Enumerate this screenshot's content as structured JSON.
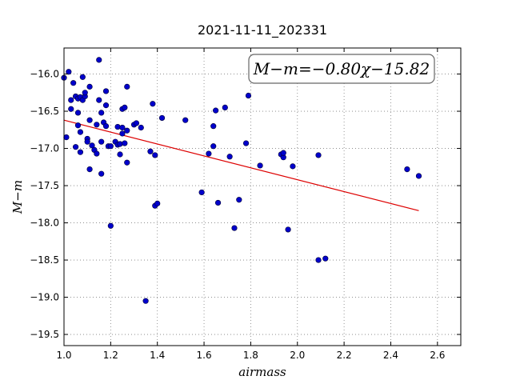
{
  "chart_data": {
    "type": "scatter",
    "title": "2021-11-11_202331",
    "xlabel": "airmass",
    "ylabel": "M−m",
    "xlim": [
      1.0,
      2.7
    ],
    "ylim": [
      -19.65,
      -15.65
    ],
    "y_inverted": true,
    "grid": true,
    "x_ticks": [
      1.0,
      1.2,
      1.4,
      1.6,
      1.8,
      2.0,
      2.2,
      2.4,
      2.6
    ],
    "x_tick_labels": [
      "1.0",
      "1.2",
      "1.4",
      "1.6",
      "1.8",
      "2.0",
      "2.2",
      "2.4",
      "2.6"
    ],
    "y_ticks": [
      -16.0,
      -16.5,
      -17.0,
      -17.5,
      -18.0,
      -18.5,
      -19.0,
      -19.5
    ],
    "y_tick_labels": [
      "−16.0",
      "−16.5",
      "−17.0",
      "−17.5",
      "−18.0",
      "−18.5",
      "−19.0",
      "−19.5"
    ],
    "annotation": "M−m=−0.80χ−15.82",
    "point_color": "#0000cc",
    "fit_color": "#dd0000",
    "fit": {
      "slope": -0.8,
      "intercept": -15.82,
      "x_range": [
        1.0,
        2.52
      ]
    },
    "points": [
      [
        1.0,
        -16.05
      ],
      [
        1.01,
        -16.85
      ],
      [
        1.02,
        -15.97
      ],
      [
        1.03,
        -16.35
      ],
      [
        1.03,
        -16.47
      ],
      [
        1.04,
        -16.12
      ],
      [
        1.05,
        -16.3
      ],
      [
        1.05,
        -16.98
      ],
      [
        1.06,
        -16.33
      ],
      [
        1.06,
        -16.69
      ],
      [
        1.06,
        -16.52
      ],
      [
        1.07,
        -16.31
      ],
      [
        1.07,
        -16.78
      ],
      [
        1.07,
        -17.05
      ],
      [
        1.08,
        -16.04
      ],
      [
        1.08,
        -16.35
      ],
      [
        1.09,
        -16.3
      ],
      [
        1.09,
        -16.25
      ],
      [
        1.1,
        -16.87
      ],
      [
        1.1,
        -16.91
      ],
      [
        1.11,
        -17.28
      ],
      [
        1.11,
        -16.62
      ],
      [
        1.11,
        -16.17
      ],
      [
        1.12,
        -16.96
      ],
      [
        1.13,
        -17.02
      ],
      [
        1.14,
        -17.07
      ],
      [
        1.14,
        -16.68
      ],
      [
        1.15,
        -16.35
      ],
      [
        1.15,
        -15.81
      ],
      [
        1.16,
        -16.52
      ],
      [
        1.16,
        -17.34
      ],
      [
        1.16,
        -16.91
      ],
      [
        1.17,
        -16.65
      ],
      [
        1.18,
        -16.42
      ],
      [
        1.18,
        -16.7
      ],
      [
        1.18,
        -16.23
      ],
      [
        1.19,
        -16.97
      ],
      [
        1.2,
        -16.97
      ],
      [
        1.2,
        -18.04
      ],
      [
        1.22,
        -16.91
      ],
      [
        1.23,
        -16.71
      ],
      [
        1.23,
        -16.95
      ],
      [
        1.24,
        -17.08
      ],
      [
        1.24,
        -16.94
      ],
      [
        1.25,
        -16.72
      ],
      [
        1.25,
        -16.8
      ],
      [
        1.25,
        -16.47
      ],
      [
        1.26,
        -16.45
      ],
      [
        1.26,
        -16.93
      ],
      [
        1.27,
        -16.76
      ],
      [
        1.27,
        -17.19
      ],
      [
        1.27,
        -16.17
      ],
      [
        1.3,
        -16.68
      ],
      [
        1.31,
        -16.66
      ],
      [
        1.33,
        -16.72
      ],
      [
        1.35,
        -19.05
      ],
      [
        1.37,
        -17.04
      ],
      [
        1.38,
        -16.4
      ],
      [
        1.39,
        -17.09
      ],
      [
        1.39,
        -17.77
      ],
      [
        1.4,
        -17.74
      ],
      [
        1.42,
        -16.59
      ],
      [
        1.52,
        -16.62
      ],
      [
        1.59,
        -17.59
      ],
      [
        1.62,
        -17.07
      ],
      [
        1.64,
        -16.97
      ],
      [
        1.64,
        -16.7
      ],
      [
        1.65,
        -16.49
      ],
      [
        1.66,
        -17.73
      ],
      [
        1.69,
        -16.45
      ],
      [
        1.71,
        -17.11
      ],
      [
        1.73,
        -18.07
      ],
      [
        1.75,
        -17.69
      ],
      [
        1.78,
        -16.93
      ],
      [
        1.79,
        -16.29
      ],
      [
        1.84,
        -17.23
      ],
      [
        1.93,
        -17.08
      ],
      [
        1.94,
        -17.12
      ],
      [
        1.94,
        -17.06
      ],
      [
        1.96,
        -18.09
      ],
      [
        1.98,
        -17.24
      ],
      [
        2.09,
        -18.5
      ],
      [
        2.09,
        -17.09
      ],
      [
        2.12,
        -18.48
      ],
      [
        2.47,
        -17.28
      ],
      [
        2.52,
        -17.37
      ]
    ]
  }
}
